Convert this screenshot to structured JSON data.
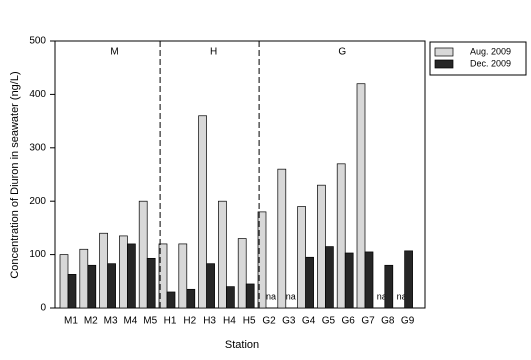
{
  "chart_data": {
    "type": "bar",
    "x_label": "Station",
    "y_label": "Concentration of Diuron in seawater (ng/L)",
    "categories": [
      "M1",
      "M2",
      "M3",
      "M4",
      "M5",
      "H1",
      "H2",
      "H3",
      "H4",
      "H5",
      "G2",
      "G3",
      "G4",
      "G5",
      "G6",
      "G7",
      "G8",
      "G9"
    ],
    "groups": [
      "M",
      "H",
      "G"
    ],
    "series": [
      {
        "name": "Aug. 2009",
        "color": "#d8d8d8",
        "values": [
          100,
          110,
          140,
          135,
          200,
          120,
          120,
          360,
          200,
          130,
          180,
          260,
          190,
          230,
          270,
          420,
          null,
          null
        ],
        "value_labels": [
          null,
          null,
          null,
          null,
          null,
          null,
          null,
          null,
          null,
          null,
          null,
          null,
          null,
          null,
          null,
          null,
          "na",
          "na"
        ]
      },
      {
        "name": "Dec. 2009",
        "color": "#262626",
        "values": [
          63,
          80,
          83,
          120,
          93,
          30,
          35,
          83,
          40,
          45,
          null,
          null,
          95,
          115,
          103,
          105,
          80,
          107
        ],
        "value_labels": [
          null,
          null,
          null,
          null,
          null,
          null,
          null,
          null,
          null,
          null,
          "na",
          "na",
          null,
          null,
          null,
          null,
          null,
          null
        ]
      }
    ],
    "ylim": [
      0,
      500
    ],
    "yticks": [
      0,
      100,
      200,
      300,
      400,
      500
    ],
    "legend": "upper right outside"
  }
}
